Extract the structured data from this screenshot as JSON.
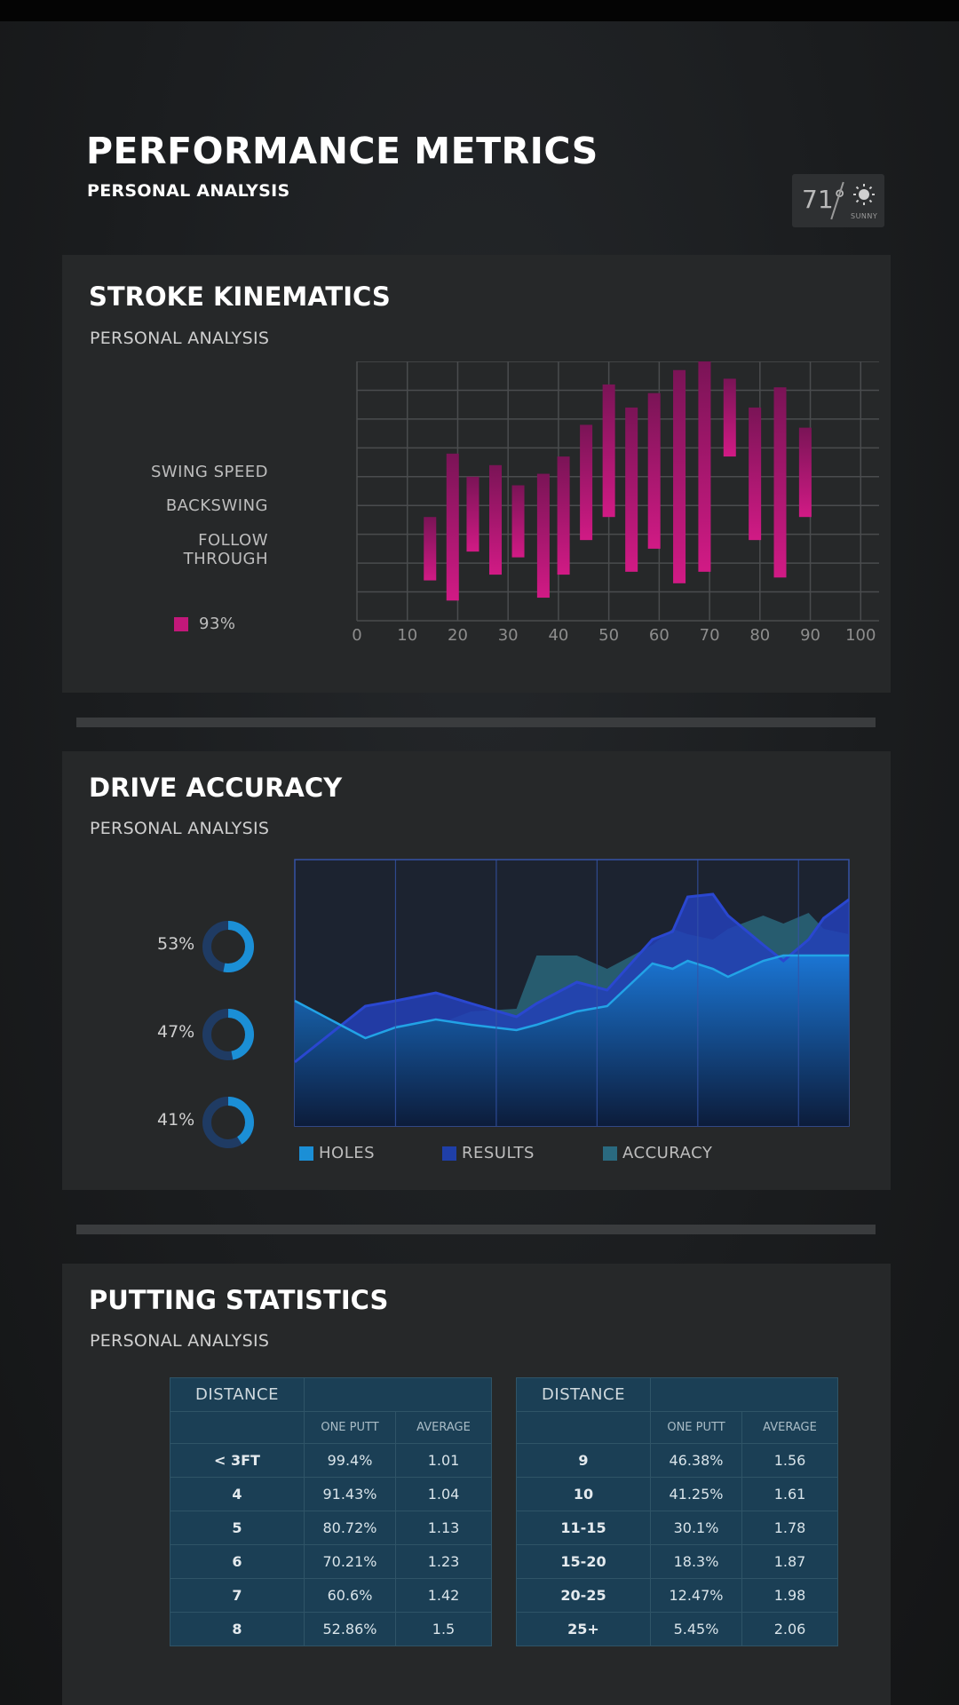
{
  "header": {
    "title": "PERFORMANCE METRICS",
    "subtitle": "PERSONAL ANALYSIS",
    "weather": {
      "temp": "71°",
      "condition": "SUNNY",
      "icon": "sun-icon"
    }
  },
  "stroke": {
    "title": "STROKE KINEMATICS",
    "subtitle": "PERSONAL ANALYSIS",
    "labels": [
      "SWING SPEED",
      "BACKSWING",
      "FOLLOW",
      "THROUGH"
    ],
    "legend": "93%",
    "color": "#c2187a"
  },
  "accuracy": {
    "title": "DRIVE ACCURACY",
    "subtitle": "PERSONAL ANALYSIS",
    "donuts": [
      {
        "label": "53%",
        "value": 53
      },
      {
        "label": "47%",
        "value": 47
      },
      {
        "label": "41%",
        "value": 41
      }
    ],
    "legend": [
      "HOLES",
      "RESULTS",
      "ACCURACY"
    ],
    "colors": {
      "holes": "#1b8fd6",
      "results": "#1f3fa8",
      "accuracy": "#2a6a80"
    }
  },
  "putting": {
    "title": "PUTTING STATISTICS",
    "subtitle": "PERSONAL ANALYSIS",
    "col_distance": "DISTANCE",
    "col_one_putt": "ONE PUTT",
    "col_average": "AVERAGE",
    "left_rows": [
      {
        "distance": "< 3FT",
        "one_putt": "99.4%",
        "average": "1.01"
      },
      {
        "distance": "4",
        "one_putt": "91.43%",
        "average": "1.04"
      },
      {
        "distance": "5",
        "one_putt": "80.72%",
        "average": "1.13"
      },
      {
        "distance": "6",
        "one_putt": "70.21%",
        "average": "1.23"
      },
      {
        "distance": "7",
        "one_putt": "60.6%",
        "average": "1.42"
      },
      {
        "distance": "8",
        "one_putt": "52.86%",
        "average": "1.5"
      }
    ],
    "right_rows": [
      {
        "distance": "9",
        "one_putt": "46.38%",
        "average": "1.56"
      },
      {
        "distance": "10",
        "one_putt": "41.25%",
        "average": "1.61"
      },
      {
        "distance": "11-15",
        "one_putt": "30.1%",
        "average": "1.78"
      },
      {
        "distance": "15-20",
        "one_putt": "18.3%",
        "average": "1.87"
      },
      {
        "distance": "20-25",
        "one_putt": "12.47%",
        "average": "1.98"
      },
      {
        "distance": "25+",
        "one_putt": "5.45%",
        "average": "2.06"
      }
    ]
  },
  "chart_data": [
    {
      "type": "bar",
      "title": "STROKE KINEMATICS",
      "x_ticks": [
        "0",
        "10",
        "20",
        "30",
        "40",
        "50",
        "60",
        "70",
        "80",
        "90",
        "100"
      ],
      "xlim": [
        0,
        110
      ],
      "ylim": [
        0,
        9
      ],
      "grid": true,
      "series": [
        {
          "name": "93%",
          "ranges": [
            {
              "x": 14.5,
              "low": 1.4,
              "high": 3.6
            },
            {
              "x": 19,
              "low": 0.7,
              "high": 5.8
            },
            {
              "x": 23,
              "low": 2.4,
              "high": 5.0
            },
            {
              "x": 27.5,
              "low": 1.6,
              "high": 5.4
            },
            {
              "x": 32,
              "low": 2.2,
              "high": 4.7
            },
            {
              "x": 37,
              "low": 0.8,
              "high": 5.1
            },
            {
              "x": 41,
              "low": 1.6,
              "high": 5.7
            },
            {
              "x": 45.5,
              "low": 2.8,
              "high": 6.8
            },
            {
              "x": 50,
              "low": 3.6,
              "high": 8.2
            },
            {
              "x": 54.5,
              "low": 1.7,
              "high": 7.4
            },
            {
              "x": 59,
              "low": 2.5,
              "high": 7.9
            },
            {
              "x": 64,
              "low": 1.3,
              "high": 8.7
            },
            {
              "x": 69,
              "low": 1.7,
              "high": 9.0
            },
            {
              "x": 74,
              "low": 5.7,
              "high": 8.4
            },
            {
              "x": 79,
              "low": 2.8,
              "high": 7.4
            },
            {
              "x": 84,
              "low": 1.5,
              "high": 8.1
            },
            {
              "x": 89,
              "low": 3.6,
              "high": 6.7
            }
          ]
        }
      ]
    },
    {
      "type": "area",
      "title": "DRIVE ACCURACY",
      "ylim": [
        0,
        100
      ],
      "x": [
        0,
        1.4,
        2,
        2.8,
        3.5,
        4.4,
        4.8,
        5.6,
        6.2,
        7.1,
        7.5,
        7.8,
        8.3,
        8.6,
        9.3,
        9.7,
        10.2,
        10.5,
        11
      ],
      "series": [
        {
          "name": "HOLES",
          "values": [
            47,
            33,
            37,
            40,
            38,
            36,
            38,
            43,
            45,
            61,
            59,
            62,
            59,
            56,
            62,
            64,
            64,
            64,
            64
          ]
        },
        {
          "name": "RESULTS",
          "values": [
            24,
            45,
            47,
            50,
            46,
            41,
            46,
            54,
            51,
            70,
            73,
            86,
            87,
            79,
            68,
            62,
            70,
            78,
            85
          ]
        },
        {
          "name": "ACCURACY",
          "values": [
            47,
            30,
            38,
            38,
            43,
            44,
            64,
            64,
            59,
            68,
            74,
            72,
            70,
            74,
            79,
            76,
            80,
            74,
            72
          ]
        }
      ]
    }
  ]
}
